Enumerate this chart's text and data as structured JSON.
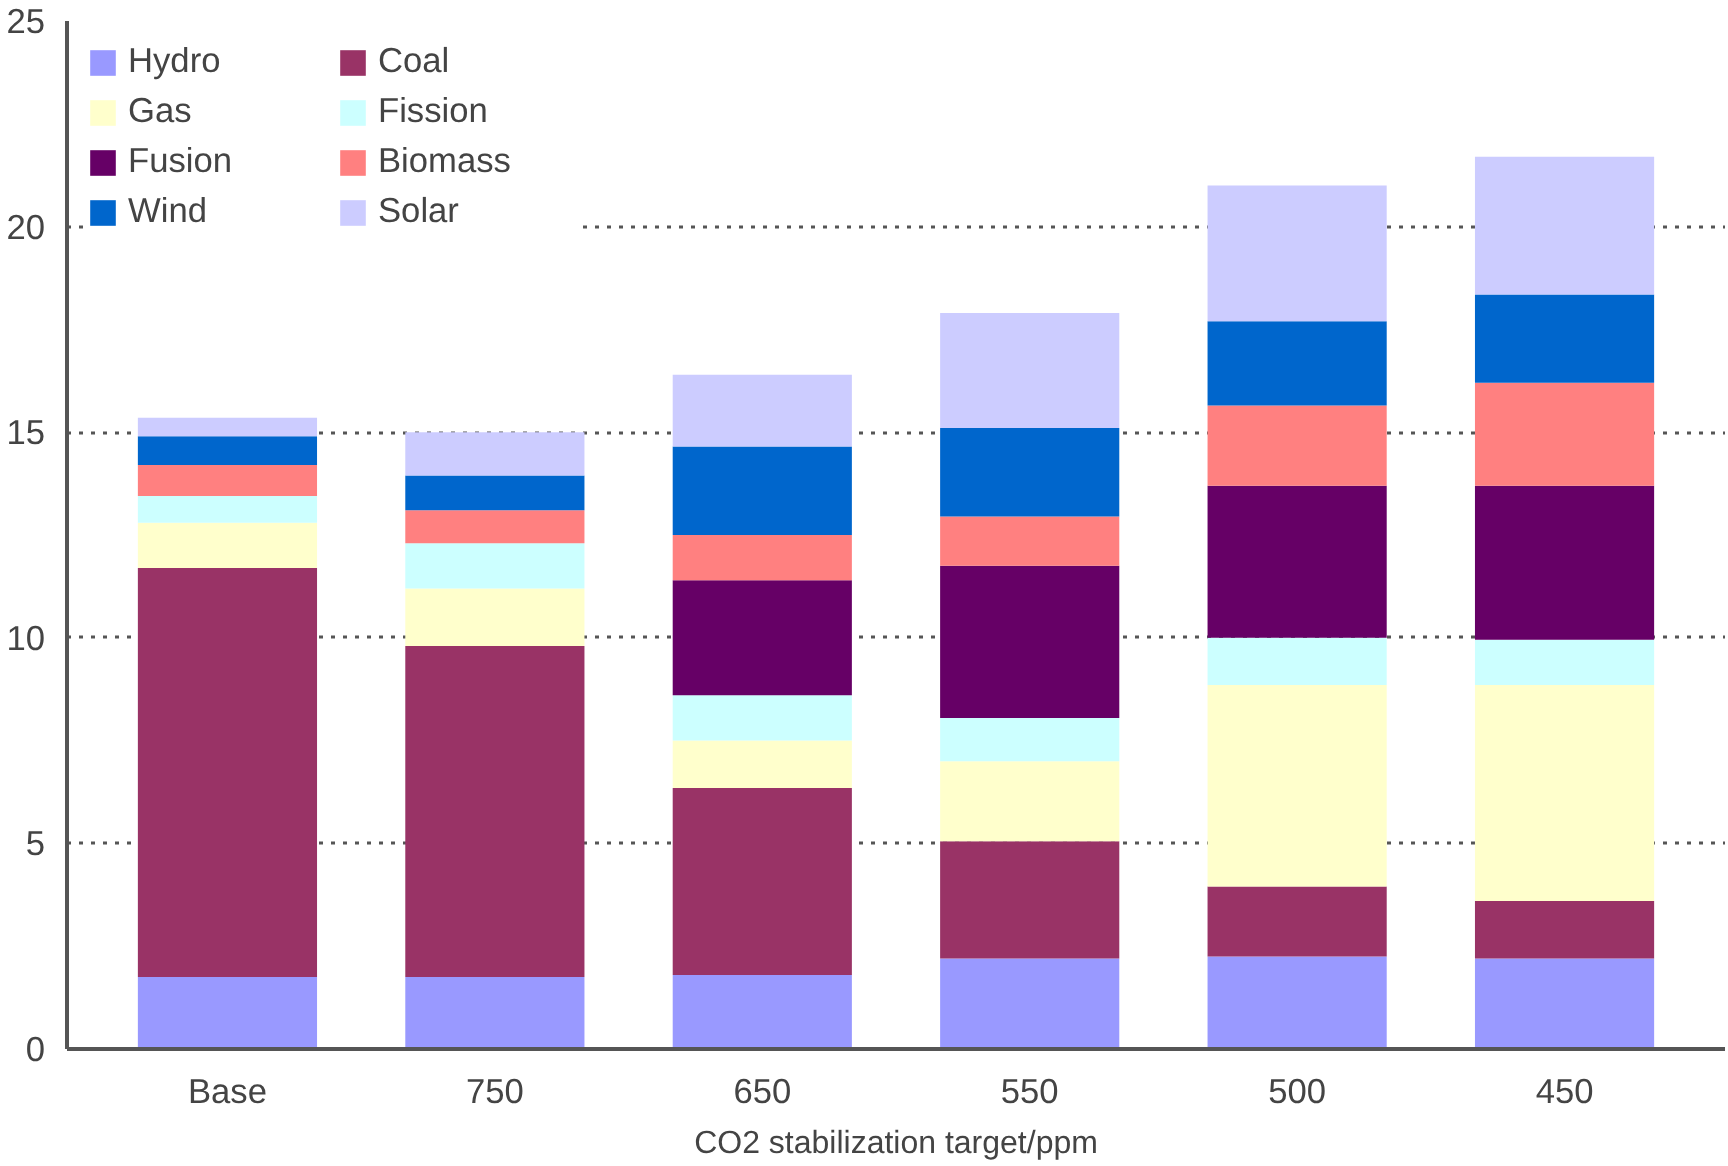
{
  "chart_data": {
    "type": "bar",
    "stacked": true,
    "xlabel": "CO2 stabilization target/ppm",
    "categories": [
      "Base",
      "750",
      "650",
      "550",
      "500",
      "450"
    ],
    "series": [
      {
        "name": "Hydro",
        "color": "#9999ff",
        "values": [
          1.75,
          1.75,
          1.8,
          2.2,
          2.25,
          2.2
        ]
      },
      {
        "name": "Coal",
        "color": "#993366",
        "values": [
          9.95,
          8.05,
          4.55,
          2.85,
          1.7,
          1.4
        ]
      },
      {
        "name": "Gas",
        "color": "#ffffcc",
        "values": [
          1.1,
          1.4,
          1.15,
          1.95,
          4.9,
          5.25
        ]
      },
      {
        "name": "Fission",
        "color": "#ccffff",
        "values": [
          0.65,
          1.1,
          1.1,
          1.05,
          1.15,
          1.1
        ]
      },
      {
        "name": "Fusion",
        "color": "#660066",
        "values": [
          0,
          0,
          2.8,
          3.7,
          3.7,
          3.75
        ]
      },
      {
        "name": "Biomass",
        "color": "#ff8080",
        "values": [
          0.75,
          0.8,
          1.1,
          1.2,
          1.95,
          2.5
        ]
      },
      {
        "name": "Wind",
        "color": "#0066cc",
        "values": [
          0.7,
          0.85,
          2.15,
          2.15,
          2.05,
          2.15
        ]
      },
      {
        "name": "Solar",
        "color": "#ccccff",
        "values": [
          0.45,
          1.05,
          1.75,
          2.8,
          3.3,
          3.35
        ]
      }
    ],
    "ylim": [
      0,
      25
    ],
    "yticks": [
      0,
      5,
      10,
      15,
      20,
      25
    ],
    "grid": "y",
    "legend": "top left"
  }
}
